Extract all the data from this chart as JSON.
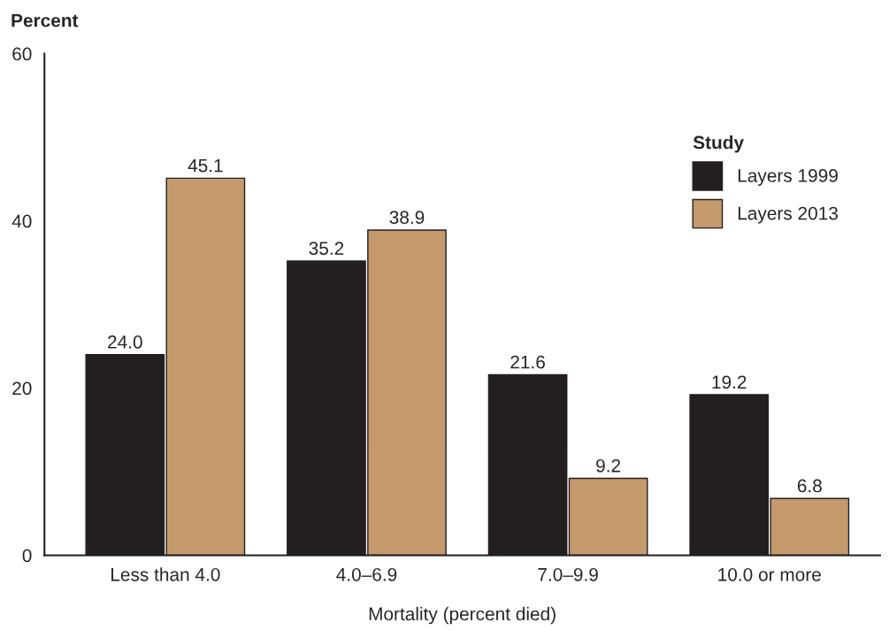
{
  "chart_data": {
    "type": "bar",
    "xlabel": "Mortality (percent died)",
    "ylabel": "Percent",
    "legend_title": "Study",
    "categories": [
      "Less than 4.0",
      "4.0–6.9",
      "7.0–9.9",
      "10.0 or more"
    ],
    "series": [
      {
        "name": "Layers 1999",
        "color": "#231f20",
        "values": [
          24.0,
          35.2,
          21.6,
          19.2
        ],
        "value_labels": [
          "24.0",
          "35.2",
          "21.6",
          "19.2"
        ]
      },
      {
        "name": "Layers 2013",
        "color": "#c49a6c",
        "values": [
          45.1,
          38.9,
          9.2,
          6.8
        ],
        "value_labels": [
          "45.1",
          "38.9",
          "9.2",
          "6.8"
        ]
      }
    ],
    "ylim": [
      0,
      60
    ],
    "yticks": [
      0,
      20,
      40,
      60
    ],
    "legend": "top right",
    "grid": false
  }
}
